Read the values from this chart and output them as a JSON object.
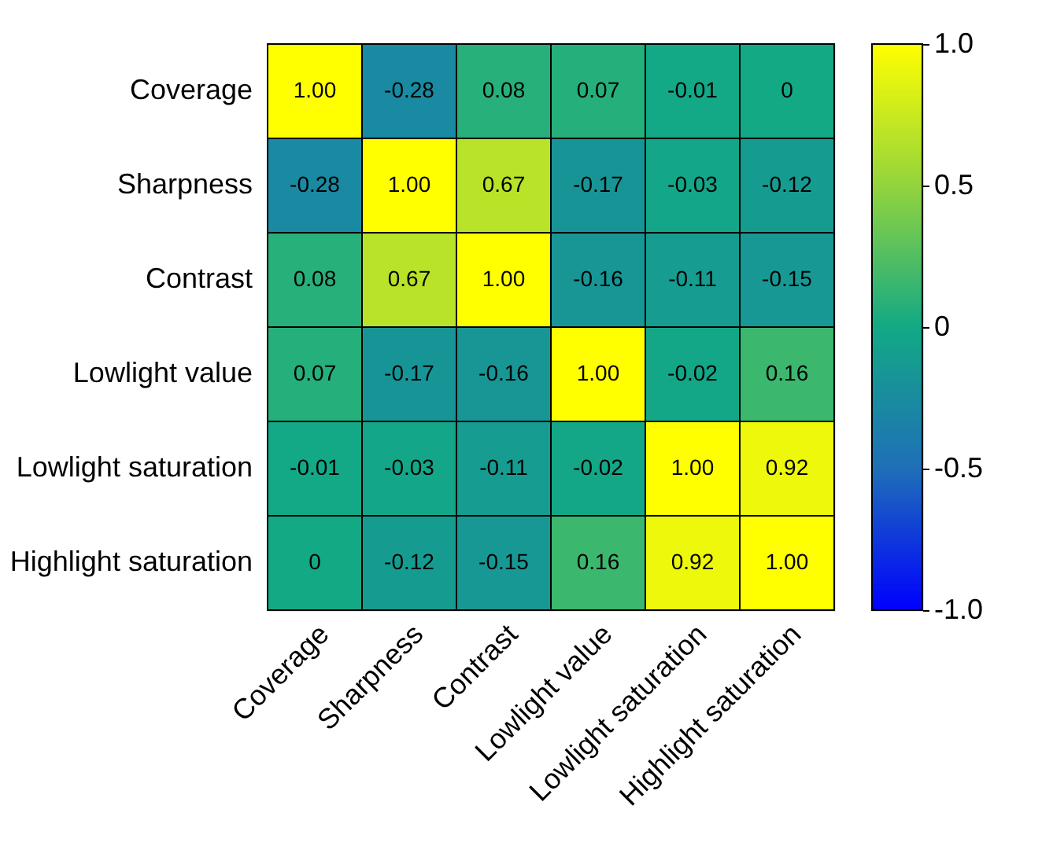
{
  "chart_data": {
    "type": "heatmap",
    "categories": [
      "Coverage",
      "Sharpness",
      "Contrast",
      "Lowlight value",
      "Lowlight saturation",
      "Highlight saturation"
    ],
    "y_categories": [
      "Coverage",
      "Sharpness",
      "Contrast",
      "Lowlight value",
      "Lowlight saturation",
      "Highlight saturation"
    ],
    "cells": [
      [
        1,
        -0.28,
        0.08,
        0.07,
        -0.01,
        0
      ],
      [
        -0.28,
        1,
        0.67,
        -0.17,
        -0.03,
        -0.12
      ],
      [
        0.08,
        0.67,
        1,
        -0.16,
        -0.11,
        -0.15
      ],
      [
        0.07,
        -0.17,
        -0.16,
        1,
        -0.02,
        0.16
      ],
      [
        -0.01,
        -0.03,
        -0.11,
        -0.02,
        1,
        0.92
      ],
      [
        0,
        -0.12,
        -0.15,
        0.16,
        0.92,
        1
      ]
    ],
    "cell_labels": [
      [
        "1.00",
        "-0.28",
        "0.08",
        "0.07",
        "-0.01",
        "0"
      ],
      [
        "-0.28",
        "1.00",
        "0.67",
        "-0.17",
        "-0.03",
        "-0.12"
      ],
      [
        "0.08",
        "0.67",
        "1.00",
        "-0.16",
        "-0.11",
        "-0.15"
      ],
      [
        "0.07",
        "-0.17",
        "-0.16",
        "1.00",
        "-0.02",
        "0.16"
      ],
      [
        "-0.01",
        "-0.03",
        "-0.11",
        "-0.02",
        "1.00",
        "0.92"
      ],
      [
        "0",
        "-0.12",
        "-0.15",
        "0.16",
        "0.92",
        "1.00"
      ]
    ],
    "clim": [
      -1,
      1
    ],
    "cticks": [
      {
        "value": 1,
        "label": "1.0"
      },
      0.5,
      0,
      -0.5,
      {
        "value": -1,
        "label": "-1.0"
      }
    ]
  }
}
